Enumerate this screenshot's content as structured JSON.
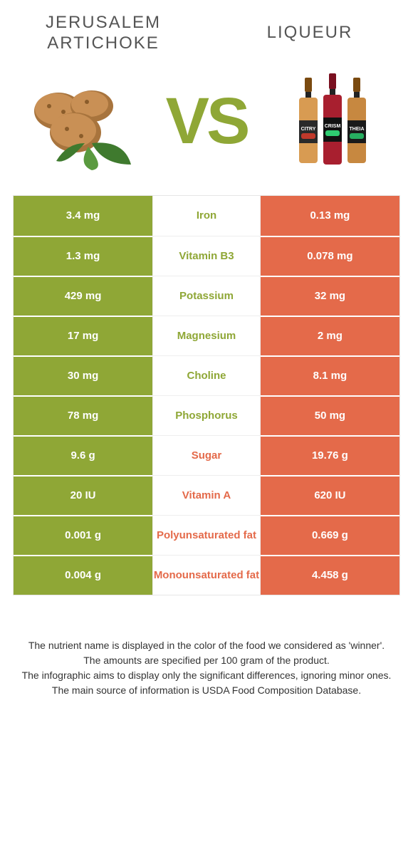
{
  "header": {
    "left_title": "Jerusalem artichoke",
    "right_title": "Liqueur",
    "vs_text": "VS"
  },
  "colors": {
    "left": "#8fa736",
    "right": "#e46a4a",
    "left_label": "#8fa736",
    "right_label": "#e46a4a",
    "row_border": "#ffffff",
    "background": "#ffffff"
  },
  "table": {
    "rows": [
      {
        "nutrient": "Iron",
        "left": "3.4 mg",
        "right": "0.13 mg",
        "winner": "left"
      },
      {
        "nutrient": "Vitamin B3",
        "left": "1.3 mg",
        "right": "0.078 mg",
        "winner": "left"
      },
      {
        "nutrient": "Potassium",
        "left": "429 mg",
        "right": "32 mg",
        "winner": "left"
      },
      {
        "nutrient": "Magnesium",
        "left": "17 mg",
        "right": "2 mg",
        "winner": "left"
      },
      {
        "nutrient": "Choline",
        "left": "30 mg",
        "right": "8.1 mg",
        "winner": "left"
      },
      {
        "nutrient": "Phosphorus",
        "left": "78 mg",
        "right": "50 mg",
        "winner": "left"
      },
      {
        "nutrient": "Sugar",
        "left": "9.6 g",
        "right": "19.76 g",
        "winner": "right"
      },
      {
        "nutrient": "Vitamin A",
        "left": "20 IU",
        "right": "620 IU",
        "winner": "right"
      },
      {
        "nutrient": "Polyunsaturated fat",
        "left": "0.001 g",
        "right": "0.669 g",
        "winner": "right"
      },
      {
        "nutrient": "Monounsaturated fat",
        "left": "0.004 g",
        "right": "4.458 g",
        "winner": "right"
      }
    ]
  },
  "footnotes": [
    "The nutrient name is displayed in the color of the food we considered as 'winner'.",
    "The amounts are specified per 100 gram of the product.",
    "The infographic aims to display only the significant differences, ignoring minor ones.",
    "The main source of information is USDA Food Composition Database."
  ]
}
